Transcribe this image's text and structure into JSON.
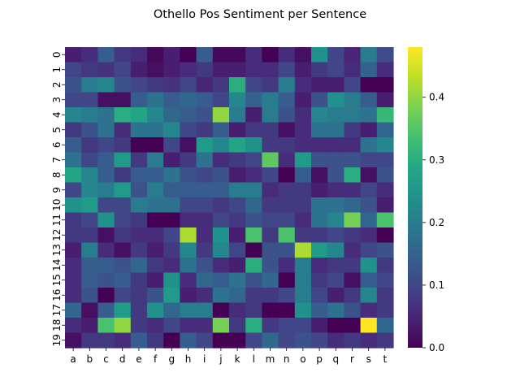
{
  "chart_data": {
    "type": "heatmap",
    "title": "Othello Pos Sentiment per Sentence",
    "xlabel": "",
    "ylabel": "",
    "x_categories": [
      "a",
      "b",
      "c",
      "d",
      "e",
      "f",
      "g",
      "h",
      "i",
      "j",
      "k",
      "l",
      "m",
      "n",
      "o",
      "p",
      "q",
      "r",
      "s",
      "t"
    ],
    "y_categories": [
      "0",
      "1",
      "2",
      "3",
      "4",
      "5",
      "6",
      "7",
      "8",
      "9",
      "10",
      "11",
      "12",
      "13",
      "14",
      "15",
      "16",
      "17",
      "18",
      "19"
    ],
    "colormap": "viridis",
    "colorbar": {
      "min": 0.0,
      "max": 0.48,
      "ticks": [
        "0.0",
        "0.1",
        "0.2",
        "0.3",
        "0.4"
      ],
      "tick_values": [
        0.0,
        0.1,
        0.2,
        0.3,
        0.4
      ]
    },
    "grid": false,
    "values": [
      [
        0.04,
        0.06,
        0.14,
        0.08,
        0.06,
        0.01,
        0.04,
        0.0,
        0.14,
        0.01,
        0.01,
        0.06,
        0.0,
        0.06,
        0.02,
        0.24,
        0.1,
        0.05,
        0.2,
        0.11
      ],
      [
        0.1,
        0.08,
        0.07,
        0.1,
        0.04,
        0.02,
        0.04,
        0.06,
        0.08,
        0.04,
        0.04,
        0.06,
        0.06,
        0.1,
        0.04,
        0.08,
        0.1,
        0.06,
        0.15,
        0.06
      ],
      [
        0.12,
        0.2,
        0.22,
        0.12,
        0.1,
        0.08,
        0.07,
        0.1,
        0.05,
        0.08,
        0.3,
        0.1,
        0.08,
        0.2,
        0.06,
        0.04,
        0.04,
        0.1,
        0.0,
        0.0
      ],
      [
        0.1,
        0.1,
        0.02,
        0.02,
        0.14,
        0.18,
        0.14,
        0.16,
        0.14,
        0.1,
        0.22,
        0.15,
        0.2,
        0.14,
        0.04,
        0.12,
        0.24,
        0.2,
        0.14,
        0.04
      ],
      [
        0.22,
        0.2,
        0.18,
        0.3,
        0.28,
        0.22,
        0.16,
        0.14,
        0.12,
        0.4,
        0.2,
        0.04,
        0.2,
        0.12,
        0.06,
        0.22,
        0.2,
        0.2,
        0.18,
        0.32
      ],
      [
        0.08,
        0.12,
        0.18,
        0.06,
        0.18,
        0.18,
        0.22,
        0.1,
        0.08,
        0.14,
        0.04,
        0.08,
        0.08,
        0.02,
        0.06,
        0.18,
        0.18,
        0.08,
        0.04,
        0.16
      ],
      [
        0.14,
        0.08,
        0.1,
        0.08,
        0.0,
        0.0,
        0.1,
        0.02,
        0.26,
        0.22,
        0.28,
        0.24,
        0.08,
        0.08,
        0.06,
        0.06,
        0.06,
        0.06,
        0.18,
        0.22
      ],
      [
        0.18,
        0.1,
        0.14,
        0.26,
        0.08,
        0.2,
        0.04,
        0.08,
        0.18,
        0.06,
        0.08,
        0.1,
        0.36,
        0.06,
        0.26,
        0.12,
        0.12,
        0.12,
        0.1,
        0.1
      ],
      [
        0.28,
        0.22,
        0.14,
        0.08,
        0.14,
        0.14,
        0.18,
        0.12,
        0.1,
        0.12,
        0.04,
        0.06,
        0.1,
        0.0,
        0.14,
        0.02,
        0.12,
        0.3,
        0.02,
        0.12
      ],
      [
        0.1,
        0.22,
        0.2,
        0.26,
        0.12,
        0.2,
        0.14,
        0.14,
        0.14,
        0.14,
        0.2,
        0.2,
        0.06,
        0.08,
        0.08,
        0.04,
        0.06,
        0.06,
        0.1,
        0.06
      ],
      [
        0.24,
        0.26,
        0.1,
        0.1,
        0.2,
        0.18,
        0.18,
        0.1,
        0.1,
        0.08,
        0.1,
        0.16,
        0.08,
        0.08,
        0.08,
        0.18,
        0.18,
        0.16,
        0.12,
        0.04
      ],
      [
        0.08,
        0.1,
        0.24,
        0.1,
        0.08,
        0.0,
        0.0,
        0.06,
        0.06,
        0.1,
        0.08,
        0.12,
        0.1,
        0.1,
        0.06,
        0.18,
        0.22,
        0.38,
        0.16,
        0.34
      ],
      [
        0.08,
        0.08,
        0.02,
        0.08,
        0.06,
        0.06,
        0.1,
        0.42,
        0.06,
        0.24,
        0.04,
        0.34,
        0.08,
        0.34,
        0.08,
        0.08,
        0.1,
        0.08,
        0.06,
        0.0
      ],
      [
        0.04,
        0.2,
        0.06,
        0.02,
        0.08,
        0.04,
        0.08,
        0.22,
        0.08,
        0.22,
        0.1,
        0.0,
        0.12,
        0.12,
        0.42,
        0.26,
        0.22,
        0.06,
        0.1,
        0.12
      ],
      [
        0.06,
        0.14,
        0.14,
        0.12,
        0.16,
        0.08,
        0.06,
        0.18,
        0.12,
        0.06,
        0.04,
        0.3,
        0.12,
        0.06,
        0.2,
        0.06,
        0.08,
        0.08,
        0.24,
        0.08
      ],
      [
        0.06,
        0.14,
        0.12,
        0.14,
        0.08,
        0.04,
        0.24,
        0.06,
        0.16,
        0.14,
        0.18,
        0.12,
        0.16,
        0.0,
        0.2,
        0.08,
        0.1,
        0.02,
        0.14,
        0.1
      ],
      [
        0.06,
        0.12,
        0.0,
        0.1,
        0.08,
        0.12,
        0.26,
        0.04,
        0.06,
        0.18,
        0.16,
        0.08,
        0.08,
        0.1,
        0.2,
        0.1,
        0.04,
        0.08,
        0.22,
        0.08
      ],
      [
        0.16,
        0.02,
        0.14,
        0.26,
        0.08,
        0.24,
        0.16,
        0.2,
        0.2,
        0.0,
        0.06,
        0.08,
        0.0,
        0.0,
        0.24,
        0.14,
        0.18,
        0.12,
        0.06,
        0.08
      ],
      [
        0.06,
        0.04,
        0.34,
        0.4,
        0.08,
        0.06,
        0.1,
        0.06,
        0.06,
        0.38,
        0.08,
        0.3,
        0.08,
        0.1,
        0.1,
        0.04,
        0.0,
        0.0,
        0.48,
        0.16
      ],
      [
        0.02,
        0.08,
        0.08,
        0.06,
        0.14,
        0.08,
        0.0,
        0.14,
        0.1,
        0.0,
        0.0,
        0.1,
        0.16,
        0.1,
        0.12,
        0.1,
        0.06,
        0.08,
        0.06,
        0.08
      ]
    ]
  }
}
